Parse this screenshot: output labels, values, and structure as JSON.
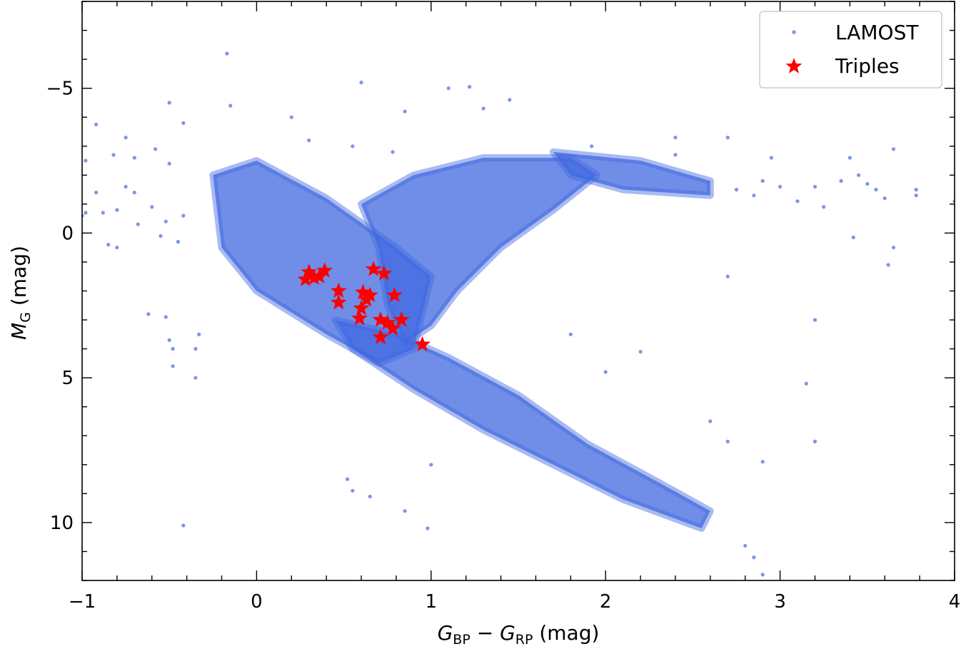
{
  "chart_data": {
    "type": "scatter",
    "xlim": [
      -1,
      4
    ],
    "ylim": [
      12,
      -8
    ],
    "y_inverted": true,
    "x_major_ticks": [
      -1,
      0,
      1,
      2,
      3,
      4
    ],
    "x_tick_labels": [
      "−1",
      "0",
      "1",
      "2",
      "3",
      "4"
    ],
    "y_major_ticks": [
      -5,
      0,
      5,
      10
    ],
    "y_tick_labels": [
      "−5",
      "0",
      "5",
      "10"
    ],
    "minor_tick_step": 0.2,
    "ticks_direction": "in",
    "grid": false,
    "legend_position": "top-right",
    "xlabel": {
      "main": "G",
      "sub1": "BP",
      "minus": " − ",
      "main2": "G",
      "sub2": "RP",
      "unit": " (mag)"
    },
    "ylabel": {
      "main": "M",
      "sub": "G",
      "unit": " (mag)"
    },
    "series": [
      {
        "name": "LAMOST",
        "marker": "circle",
        "color": "#4169e1",
        "density_regions": [
          {
            "region": "upper-main-sequence",
            "path": [
              [
                -0.25,
                -2.0
              ],
              [
                0.0,
                -2.5
              ],
              [
                0.4,
                -1.2
              ],
              [
                0.8,
                0.5
              ],
              [
                1.0,
                1.5
              ],
              [
                0.9,
                4.0
              ],
              [
                0.7,
                4.5
              ],
              [
                0.4,
                3.5
              ],
              [
                0.0,
                2.0
              ],
              [
                -0.2,
                0.5
              ]
            ]
          },
          {
            "region": "red-giant-branch",
            "path": [
              [
                0.6,
                -1.0
              ],
              [
                0.9,
                -2.0
              ],
              [
                1.3,
                -2.6
              ],
              [
                1.8,
                -2.6
              ],
              [
                1.95,
                -2.0
              ],
              [
                1.7,
                -0.8
              ],
              [
                1.4,
                0.5
              ],
              [
                1.15,
                2.0
              ],
              [
                1.0,
                3.2
              ],
              [
                0.85,
                3.8
              ],
              [
                0.75,
                2.5
              ],
              [
                0.7,
                0.5
              ]
            ]
          },
          {
            "region": "lower-main-sequence",
            "path": [
              [
                0.45,
                3.0
              ],
              [
                0.8,
                3.5
              ],
              [
                1.1,
                4.3
              ],
              [
                1.5,
                5.6
              ],
              [
                1.9,
                7.3
              ],
              [
                2.3,
                8.6
              ],
              [
                2.6,
                9.6
              ],
              [
                2.55,
                10.2
              ],
              [
                2.1,
                9.2
              ],
              [
                1.7,
                8.0
              ],
              [
                1.3,
                6.8
              ],
              [
                0.9,
                5.4
              ],
              [
                0.55,
                4.0
              ]
            ]
          },
          {
            "region": "red-clump-tail",
            "path": [
              [
                1.7,
                -2.8
              ],
              [
                2.2,
                -2.5
              ],
              [
                2.6,
                -1.8
              ],
              [
                2.6,
                -1.3
              ],
              [
                2.1,
                -1.5
              ],
              [
                1.8,
                -2.0
              ]
            ]
          }
        ],
        "sparse_points": [
          [
            -0.17,
            -6.2
          ],
          [
            0.6,
            -5.2
          ],
          [
            1.1,
            -5.0
          ],
          [
            1.22,
            -5.05
          ],
          [
            1.45,
            -4.6
          ],
          [
            -0.5,
            -4.5
          ],
          [
            -0.15,
            -4.4
          ],
          [
            0.85,
            -4.2
          ],
          [
            1.3,
            -4.3
          ],
          [
            0.2,
            -4.0
          ],
          [
            -0.42,
            -3.8
          ],
          [
            -0.92,
            -3.75
          ],
          [
            0.3,
            -3.2
          ],
          [
            0.55,
            -3.0
          ],
          [
            0.78,
            -2.8
          ],
          [
            1.92,
            -3.0
          ],
          [
            2.4,
            -3.3
          ],
          [
            2.4,
            -2.7
          ],
          [
            2.7,
            -3.3
          ],
          [
            2.95,
            -2.6
          ],
          [
            3.4,
            -2.6
          ],
          [
            3.65,
            -2.9
          ],
          [
            -0.75,
            -3.3
          ],
          [
            -0.58,
            -2.9
          ],
          [
            -0.82,
            -2.7
          ],
          [
            -0.7,
            -2.6
          ],
          [
            -0.5,
            -2.4
          ],
          [
            -0.98,
            -2.5
          ],
          [
            2.9,
            -1.8
          ],
          [
            3.0,
            -1.6
          ],
          [
            3.2,
            -1.6
          ],
          [
            3.35,
            -1.8
          ],
          [
            3.45,
            -2.0
          ],
          [
            3.5,
            -1.7
          ],
          [
            3.55,
            -1.5
          ],
          [
            3.78,
            -1.5
          ],
          [
            3.78,
            -1.3
          ],
          [
            4.0,
            -1.1
          ],
          [
            3.1,
            -1.1
          ],
          [
            3.25,
            -0.9
          ],
          [
            2.85,
            -1.3
          ],
          [
            2.75,
            -1.5
          ],
          [
            3.6,
            -1.2
          ],
          [
            -0.92,
            -1.4
          ],
          [
            -0.88,
            -0.7
          ],
          [
            -0.8,
            -0.8
          ],
          [
            -0.75,
            -1.6
          ],
          [
            -0.7,
            -1.4
          ],
          [
            -0.68,
            -0.3
          ],
          [
            -0.6,
            -0.9
          ],
          [
            -0.55,
            0.1
          ],
          [
            -0.52,
            -0.4
          ],
          [
            -0.45,
            0.3
          ],
          [
            -0.42,
            -0.6
          ],
          [
            -0.85,
            0.4
          ],
          [
            -0.8,
            0.5
          ],
          [
            -0.98,
            -0.7
          ],
          [
            -1.0,
            -0.6
          ],
          [
            3.42,
            0.15
          ],
          [
            3.65,
            0.5
          ],
          [
            3.62,
            1.1
          ],
          [
            2.7,
            1.5
          ],
          [
            3.2,
            7.2
          ],
          [
            3.15,
            5.2
          ],
          [
            3.2,
            3.0
          ],
          [
            2.9,
            7.9
          ],
          [
            -0.62,
            2.8
          ],
          [
            -0.52,
            2.9
          ],
          [
            -0.5,
            3.7
          ],
          [
            -0.48,
            4.0
          ],
          [
            -0.48,
            4.6
          ],
          [
            -0.35,
            4.0
          ],
          [
            -0.33,
            3.5
          ],
          [
            -0.35,
            5.0
          ],
          [
            -0.42,
            10.1
          ],
          [
            0.52,
            8.5
          ],
          [
            0.55,
            8.9
          ],
          [
            0.85,
            9.6
          ],
          [
            0.98,
            10.2
          ],
          [
            0.65,
            9.1
          ],
          [
            1.0,
            8.0
          ],
          [
            2.8,
            10.8
          ],
          [
            2.85,
            11.2
          ],
          [
            2.9,
            11.8
          ],
          [
            2.6,
            6.5
          ],
          [
            2.7,
            7.2
          ],
          [
            1.8,
            3.5
          ],
          [
            2.0,
            4.8
          ],
          [
            2.2,
            4.1
          ]
        ]
      },
      {
        "name": "Triples",
        "marker": "star",
        "color": "#ff0000",
        "points": [
          [
            0.28,
            1.6
          ],
          [
            0.3,
            1.35
          ],
          [
            0.33,
            1.55
          ],
          [
            0.36,
            1.5
          ],
          [
            0.39,
            1.3
          ],
          [
            0.47,
            2.0
          ],
          [
            0.47,
            2.4
          ],
          [
            0.59,
            2.95
          ],
          [
            0.6,
            2.6
          ],
          [
            0.61,
            2.05
          ],
          [
            0.63,
            2.3
          ],
          [
            0.65,
            2.15
          ],
          [
            0.67,
            1.25
          ],
          [
            0.73,
            1.4
          ],
          [
            0.71,
            3.0
          ],
          [
            0.71,
            3.6
          ],
          [
            0.75,
            3.1
          ],
          [
            0.78,
            3.3
          ],
          [
            0.79,
            2.15
          ],
          [
            0.83,
            3.0
          ],
          [
            0.95,
            3.85
          ]
        ]
      }
    ]
  }
}
